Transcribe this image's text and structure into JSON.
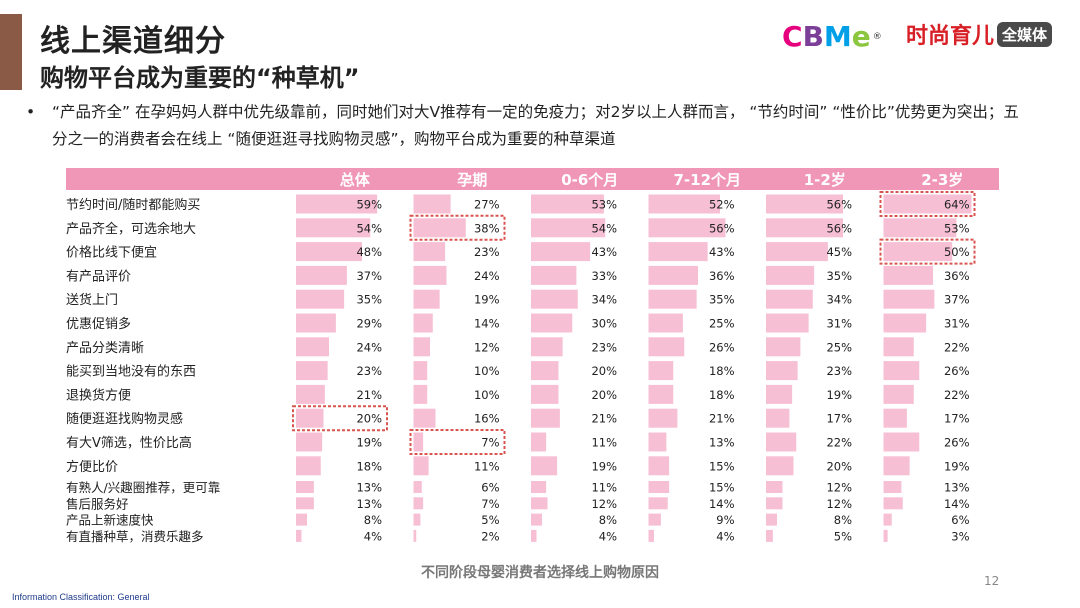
{
  "header": {
    "title": "线上渠道细分",
    "subtitle": "购物平台成为重要的“种草机”",
    "logo_cbme": {
      "letters": [
        "C",
        "B",
        "M",
        "e"
      ],
      "colors": [
        "#e6007e",
        "#7b3f98",
        "#00a0e9",
        "#8cc63f"
      ],
      "reg_mark": "®"
    },
    "logo_media": {
      "brand": "时尚育儿",
      "badge": "全媒体"
    }
  },
  "bullet": {
    "marker": "•",
    "text": "“产品齐全” 在孕妈妈人群中优先级靠前，同时她们对大V推荐有一定的免疫力；对2岁以上人群而言， “节约时间” “性价比”优势更为突出；五分之一的消费者会在线上 “随便逛逛寻找购物灵感”，购物平台成为重要的种草渠道"
  },
  "chart_data": {
    "type": "bar",
    "orientation": "horizontal-small-multiples",
    "categories": [
      "节约时间/随时都能购买",
      "产品齐全，可选余地大",
      "价格比线下便宜",
      "有产品评价",
      "送货上门",
      "优惠促销多",
      "产品分类清晰",
      "能买到当地没有的东西",
      "退换货方便",
      "随便逛逛找购物灵感",
      "有大V筛选，性价比高",
      "方便比价",
      "有熟人/兴趣圈推荐，更可靠",
      "售后服务好",
      "产品上新速度快",
      "有直播种草，消费乐趣多"
    ],
    "series": [
      {
        "name": "总体",
        "values": [
          59,
          54,
          48,
          37,
          35,
          29,
          24,
          23,
          21,
          20,
          19,
          18,
          13,
          13,
          8,
          4
        ]
      },
      {
        "name": "孕期",
        "values": [
          27,
          38,
          23,
          24,
          19,
          14,
          12,
          10,
          10,
          16,
          7,
          11,
          6,
          7,
          5,
          2
        ]
      },
      {
        "name": "0-6个月",
        "values": [
          53,
          54,
          43,
          33,
          34,
          30,
          23,
          20,
          20,
          21,
          11,
          19,
          11,
          12,
          8,
          4
        ]
      },
      {
        "name": "7-12个月",
        "values": [
          52,
          56,
          43,
          36,
          35,
          25,
          26,
          18,
          18,
          21,
          13,
          15,
          15,
          14,
          9,
          4
        ]
      },
      {
        "name": "1-2岁",
        "values": [
          56,
          56,
          45,
          35,
          34,
          31,
          25,
          23,
          19,
          17,
          22,
          20,
          12,
          12,
          8,
          5
        ]
      },
      {
        "name": "2-3岁",
        "values": [
          64,
          53,
          50,
          36,
          37,
          31,
          22,
          26,
          22,
          17,
          26,
          19,
          13,
          14,
          6,
          3
        ]
      }
    ],
    "value_suffix": "%",
    "xlim": [
      0,
      100
    ],
    "highlights": [
      {
        "series": 0,
        "category": 9
      },
      {
        "series": 1,
        "category": 1
      },
      {
        "series": 1,
        "category": 10
      },
      {
        "series": 5,
        "category": 0
      },
      {
        "series": 5,
        "category": 2
      }
    ],
    "colors": {
      "header_bg": "#f096b6",
      "bar": "#f7bfd4",
      "highlight": "#d9534f",
      "header_text": "#ffffff"
    }
  },
  "footer": {
    "caption": "不同阶段母婴消费者选择线上购物原因",
    "page_number": "12",
    "classification": "Information Classification: General"
  }
}
